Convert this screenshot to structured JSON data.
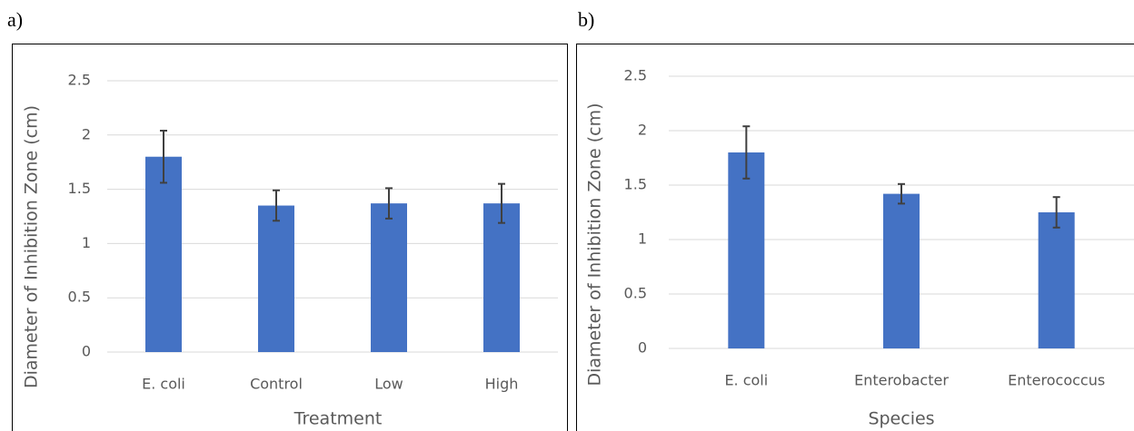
{
  "chart_data": [
    {
      "type": "bar",
      "panel_label": "a)",
      "x_label": "Treatment",
      "y_label": "Diameter of Inhibition Zone (cm)",
      "categories": [
        "E. coli",
        "Control",
        "Low",
        "High"
      ],
      "series": [
        {
          "color": "#4472c4",
          "values": [
            1.8,
            1.35,
            1.37,
            1.37
          ],
          "errors": [
            0.24,
            0.14,
            0.14,
            0.18
          ]
        }
      ],
      "ylim": [
        0,
        2.5
      ],
      "yticks": [
        0,
        0.5,
        1,
        1.5,
        2,
        2.5
      ],
      "grid": true
    },
    {
      "type": "bar",
      "panel_label": "b)",
      "x_label": "Species",
      "y_label": "Diameter of Inhibition Zone (cm)",
      "categories": [
        "E. coli",
        "Enterobacter",
        "Enterococcus"
      ],
      "series": [
        {
          "color": "#4472c4",
          "values": [
            1.8,
            1.42,
            1.25
          ],
          "errors": [
            0.24,
            0.09,
            0.14
          ]
        }
      ],
      "ylim": [
        0,
        2.5
      ],
      "yticks": [
        0,
        0.5,
        1,
        1.5,
        2,
        2.5
      ],
      "grid": true
    }
  ]
}
